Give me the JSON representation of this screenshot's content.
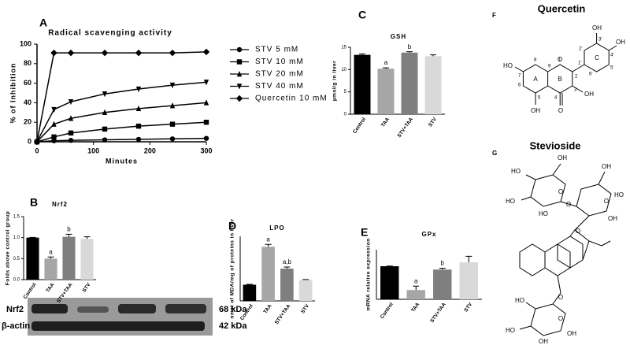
{
  "chart_data": [
    {
      "type": "line",
      "panel": "A",
      "title": "Radical scavenging activity",
      "xlabel": "Minutes",
      "ylabel": "% of Inhibition",
      "x": [
        0,
        30,
        60,
        120,
        180,
        240,
        300
      ],
      "xlim": [
        0,
        300
      ],
      "xticks": [
        0,
        100,
        200,
        300
      ],
      "ylim": [
        0,
        100
      ],
      "yticks": [
        0,
        20,
        40,
        60,
        80,
        100
      ],
      "legend": "right",
      "series": [
        {
          "name": "STV 5 mM",
          "color": "#000000",
          "marker": "circle",
          "values": [
            0,
            1,
            1.5,
            2,
            2.5,
            3,
            3.5
          ]
        },
        {
          "name": "STV 10 mM",
          "color": "#000000",
          "marker": "square",
          "values": [
            0,
            5,
            9,
            13,
            16,
            18,
            20
          ]
        },
        {
          "name": "STV 20 mM",
          "color": "#000000",
          "marker": "triangle",
          "values": [
            0,
            18,
            24,
            30,
            34,
            37,
            40
          ]
        },
        {
          "name": "STV 40 mM",
          "color": "#000000",
          "marker": "triangle-down",
          "values": [
            0,
            33,
            41,
            49,
            54,
            58,
            61
          ]
        },
        {
          "name": "Quercetin 10 mM",
          "color": "#000000",
          "marker": "diamond",
          "values": [
            0,
            91,
            91,
            91,
            91,
            91,
            92
          ]
        }
      ]
    },
    {
      "type": "bar",
      "panel": "B",
      "title": "Nrf2",
      "ylabel": "Folds above control group",
      "categories": [
        "Control",
        "TAA",
        "STV+TAA",
        "STV"
      ],
      "values": [
        1.0,
        0.5,
        1.02,
        0.97
      ],
      "errors": [
        0.005,
        0.04,
        0.06,
        0.05
      ],
      "letters": [
        null,
        "a",
        "b",
        null
      ],
      "colors": [
        "#000000",
        "#a6a6a6",
        "#7f7f7f",
        "#d9d9d9"
      ],
      "ylim": [
        0,
        1.5
      ],
      "yticks": [
        {
          "value": 0,
          "label": "0.0"
        },
        {
          "value": 0.5,
          "label": "0.5"
        },
        {
          "value": 1,
          "label": "1.0"
        },
        {
          "value": 1.5,
          "label": "1.5"
        }
      ]
    },
    {
      "type": "bar",
      "panel": "C",
      "title": "GSH",
      "ylabel": "µmol/g in liver",
      "categories": [
        "Control",
        "TAA",
        "STV+TAA",
        "STV"
      ],
      "values": [
        13.3,
        10.2,
        13.8,
        13.0
      ],
      "errors": [
        0.2,
        0.2,
        0.2,
        0.3
      ],
      "letters": [
        null,
        "a",
        "b",
        null
      ],
      "colors": [
        "#000000",
        "#a6a6a6",
        "#7f7f7f",
        "#d9d9d9"
      ],
      "ylim": [
        0,
        15
      ],
      "yticks": [
        0,
        5,
        10,
        15
      ]
    },
    {
      "type": "bar",
      "panel": "D",
      "title": "LPO",
      "ylabel": "nmol of MDA/mg of proteins in liver",
      "categories": [
        "Control",
        "TAA",
        "STV+TAA",
        "STV"
      ],
      "values": [
        0.2,
        0.67,
        0.4,
        0.26
      ],
      "errors": [
        0.005,
        0.03,
        0.02,
        0.005
      ],
      "letters": [
        null,
        "a",
        "a,b",
        null
      ],
      "colors": [
        "#000000",
        "#a6a6a6",
        "#7f7f7f",
        "#d9d9d9"
      ],
      "ylim": [
        0,
        0.8
      ]
    },
    {
      "type": "bar",
      "panel": "E",
      "title": "GPx",
      "ylabel": "mRNA relative expression",
      "categories": [
        "Control",
        "TAA",
        "STV+TAA",
        "STV"
      ],
      "values": [
        1.0,
        0.28,
        0.9,
        1.12
      ],
      "errors": [
        0.005,
        0.12,
        0.04,
        0.18
      ],
      "letters": [
        null,
        "a",
        "b",
        null
      ],
      "colors": [
        "#000000",
        "#a6a6a6",
        "#7f7f7f",
        "#d9d9d9"
      ],
      "ylim": [
        0,
        1.5
      ]
    }
  ],
  "blot": {
    "rows": [
      {
        "name": "Nrf2",
        "size": "68 kDa"
      },
      {
        "name": "β-actin",
        "size": "42 kDa"
      }
    ]
  },
  "quercetin": {
    "panel": "F",
    "title": "Quercetin",
    "labels": [
      "HO",
      "7",
      "8",
      "9",
      "1",
      "2",
      "1'",
      "2'",
      "3'",
      "OH",
      "4'",
      "OH",
      "5'",
      "6'",
      "3",
      "OH",
      "4",
      "O",
      "5",
      "OH",
      "6",
      "A",
      "B",
      "C",
      "O"
    ]
  },
  "stevioside": {
    "panel": "G",
    "title": "Stevioside",
    "labels": [
      "HO",
      "HO",
      "HO",
      "O",
      "OH",
      "O",
      "OH",
      "HO",
      "O",
      "OH",
      "O",
      "O",
      "HO",
      "HO",
      "OH",
      "OH",
      "O"
    ]
  }
}
